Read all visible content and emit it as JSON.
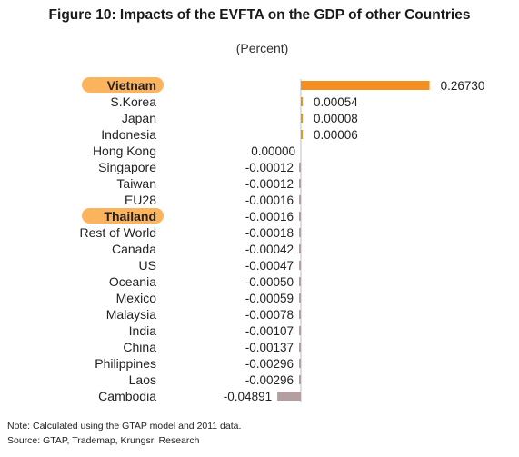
{
  "title": "Figure 10: Impacts of the EVFTA on the GDP of other Countries",
  "subtitle": "(Percent)",
  "note": "Note: Calculated using the GTAP model and 2011 data.",
  "source": "Source: GTAP, Trademap, Krungsri Research",
  "colors": {
    "positive_bar": "#f5901e",
    "negative_bar": "#b49e9f",
    "highlight_pill": "#fbb35e",
    "axis": "#bdbdbd"
  },
  "chart_data": {
    "type": "bar",
    "orientation": "horizontal",
    "categories": [
      "Vietnam",
      "S.Korea",
      "Japan",
      "Indonesia",
      "Hong Kong",
      "Singapore",
      "Taiwan",
      "EU28",
      "Thailand",
      "Rest of World",
      "Canada",
      "US",
      "Oceania",
      "Mexico",
      "Malaysia",
      "India",
      "China",
      "Philippines",
      "Laos",
      "Cambodia"
    ],
    "values": [
      0.2673,
      0.00054,
      8e-05,
      6e-05,
      0.0,
      -0.00012,
      -0.00012,
      -0.00016,
      -0.00016,
      -0.00018,
      -0.00042,
      -0.00047,
      -0.0005,
      -0.00059,
      -0.00078,
      -0.00107,
      -0.00137,
      -0.00296,
      -0.00296,
      -0.04891
    ],
    "value_labels": [
      "0.26730",
      "0.00054",
      "0.00008",
      "0.00006",
      "0.00000",
      "-0.00012",
      "-0.00012",
      "-0.00016",
      "-0.00016",
      "-0.00018",
      "-0.00042",
      "-0.00047",
      "-0.00050",
      "-0.00059",
      "-0.00078",
      "-0.00107",
      "-0.00137",
      "-0.00296",
      "-0.00296",
      "-0.04891"
    ],
    "highlighted": [
      "Vietnam",
      "Thailand"
    ],
    "xlim": [
      -0.06,
      0.27
    ],
    "grid": false,
    "legend": "none"
  }
}
